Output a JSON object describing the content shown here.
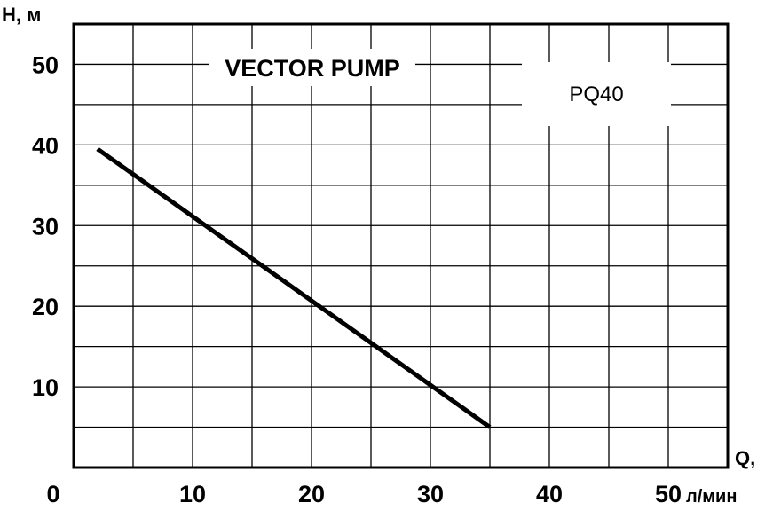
{
  "chart_data": {
    "type": "line",
    "title": "VECTOR PUMP",
    "model": "PQ40",
    "xlabel": "Q,",
    "xunit": "л/мин",
    "ylabel": "H, м",
    "xlim": [
      0,
      55
    ],
    "ylim": [
      0,
      55
    ],
    "xticks": [
      "0",
      "10",
      "20",
      "30",
      "40",
      "50"
    ],
    "yticks": [
      "10",
      "20",
      "30",
      "40",
      "50"
    ],
    "grid": true,
    "series": [
      {
        "x": [
          2,
          35
        ],
        "y": [
          39.5,
          5
        ]
      }
    ]
  }
}
